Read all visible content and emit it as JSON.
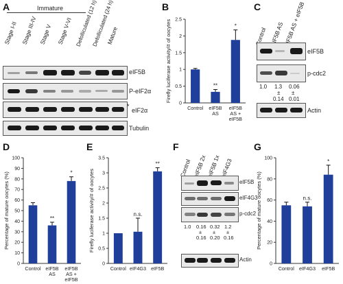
{
  "panel_labels": {
    "A": "A",
    "B": "B",
    "C": "C",
    "D": "D",
    "E": "E",
    "F": "F",
    "G": "G"
  },
  "panelA": {
    "group_label": "Immature",
    "lanes": [
      "Stage I-II",
      "Stage III-IV",
      "Stage V",
      "Stage V-VI",
      "Defolliculated (12 h)",
      "Defolliculated (24 h)",
      "Mature"
    ],
    "rows": [
      "eIF5B",
      "P-eIF2α",
      "eIF2α",
      "Tubulin"
    ],
    "asterisk": "*"
  },
  "panelC": {
    "lanes": [
      "Control",
      "eIF5B AS",
      "eIF5B AS + eIF5B"
    ],
    "rows": [
      "eIF5B",
      "p-cdc2",
      "Actin"
    ],
    "quant_top": [
      "1.0",
      "1.3",
      "0.06"
    ],
    "quant_pm": [
      "±",
      "±"
    ],
    "quant_bottom": [
      "0.14",
      "0.01"
    ]
  },
  "panelF": {
    "lanes": [
      "Control",
      "eIF5B 2x",
      "eIF5B 1x",
      "eIF4G3"
    ],
    "rows": [
      "eIF5B",
      "eIF4G3",
      "p-cdc2",
      "Actin"
    ],
    "quant_top": [
      "1.0",
      "0.16",
      "0.32",
      "1.2"
    ],
    "quant_pm": [
      "±",
      "±",
      "±"
    ],
    "quant_bottom": [
      "0.16",
      "0.20",
      "0.16"
    ]
  },
  "chart_data": [
    {
      "id": "B",
      "type": "bar",
      "categories": [
        "Control",
        "eIF5B AS",
        "eIF5B AS + eIF5B"
      ],
      "values": [
        1.0,
        0.33,
        1.88
      ],
      "errors": [
        0.03,
        0.07,
        0.3
      ],
      "annotations": [
        "",
        "**",
        "*"
      ],
      "ylabel": "Firefly luciferase activity/# of oocytes",
      "ylim": [
        0,
        2.5
      ],
      "yticks": [
        "0",
        "0.5",
        "1",
        "1.5",
        "2",
        "2.5"
      ],
      "color": "#1f3f9a"
    },
    {
      "id": "D",
      "type": "bar",
      "categories": [
        "Control",
        "eIF5B AS",
        "eIF5B AS + eIF5B"
      ],
      "values": [
        55,
        36,
        78
      ],
      "errors": [
        2.5,
        3,
        4
      ],
      "annotations": [
        "",
        "**",
        "*"
      ],
      "ylabel": "Percentage of mature oocytes (%)",
      "ylim": [
        0,
        100
      ],
      "yticks": [
        "0",
        "10",
        "20",
        "30",
        "40",
        "50",
        "60",
        "70",
        "80",
        "90",
        "100"
      ],
      "color": "#1f3f9a"
    },
    {
      "id": "E",
      "type": "bar",
      "categories": [
        "Control",
        "eIF4G3",
        "eIF5B"
      ],
      "values": [
        1.0,
        1.05,
        3.05
      ],
      "errors": [
        0,
        0.45,
        0.12
      ],
      "annotations": [
        "",
        "n.s.",
        "**"
      ],
      "ylabel": "Firefly luciferase activity/# of oocytes",
      "ylim": [
        0,
        3.5
      ],
      "yticks": [
        "0",
        "0.5",
        "1",
        "1.5",
        "2",
        "2.5",
        "3",
        "3.5"
      ],
      "color": "#1f3f9a"
    },
    {
      "id": "G",
      "type": "bar",
      "categories": [
        "Control",
        "eIF4G3",
        "eIF5B"
      ],
      "values": [
        55,
        54,
        84
      ],
      "errors": [
        3,
        4,
        9
      ],
      "annotations": [
        "",
        "n.s.",
        "*"
      ],
      "ylabel": "Percentage of mature oocytes (%)",
      "ylim": [
        0,
        100
      ],
      "yticks": [
        "0",
        "20",
        "40",
        "60",
        "80",
        "100"
      ],
      "color": "#1f3f9a"
    }
  ]
}
